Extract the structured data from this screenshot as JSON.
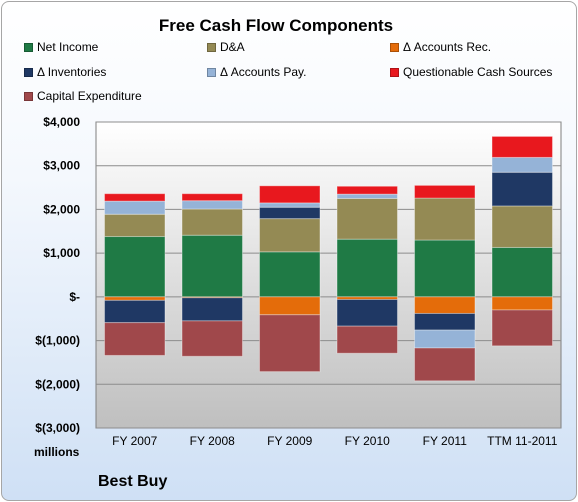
{
  "company": "Best Buy",
  "chart_data": {
    "type": "bar",
    "stacked": true,
    "title": "Free Cash Flow Components",
    "ylabel": "millions",
    "xlabel": "",
    "ylim": [
      -3000,
      4000
    ],
    "yticks": [
      {
        "value": 4000,
        "label": "$4,000"
      },
      {
        "value": 3000,
        "label": "$3,000"
      },
      {
        "value": 2000,
        "label": "$2,000"
      },
      {
        "value": 1000,
        "label": "$1,000"
      },
      {
        "value": 0,
        "label": "$-"
      },
      {
        "value": -1000,
        "label": "$(1,000)"
      },
      {
        "value": -2000,
        "label": "$(2,000)"
      },
      {
        "value": -3000,
        "label": "$(3,000)"
      }
    ],
    "grid": true,
    "legend_position": "top",
    "categories": [
      "FY 2007",
      "FY 2008",
      "FY 2009",
      "FY 2010",
      "FY 2011",
      "TTM 11-2011"
    ],
    "series": [
      {
        "name": "Net Income",
        "color": "#1f7a45",
        "values": [
          1380,
          1410,
          1030,
          1320,
          1300,
          1130
        ]
      },
      {
        "name": "D&A",
        "color": "#948a54",
        "values": [
          510,
          600,
          760,
          930,
          960,
          950
        ]
      },
      {
        "name": "Δ Accounts Rec.",
        "color": "#e46c0a",
        "values": [
          -80,
          -20,
          -410,
          -60,
          -380,
          -300
        ]
      },
      {
        "name": "Δ Inventories",
        "color": "#1f3864",
        "values": [
          -510,
          -530,
          260,
          -610,
          -380,
          770
        ]
      },
      {
        "name": "Δ Accounts Pay.",
        "color": "#95b3d7",
        "values": [
          300,
          190,
          100,
          100,
          -410,
          340
        ]
      },
      {
        "name": "Questionable Cash Sources",
        "color": "#e8181e",
        "values": [
          170,
          160,
          390,
          180,
          290,
          480
        ]
      },
      {
        "name": "Capital Expenditure",
        "color": "#a0484b",
        "values": [
          -750,
          -810,
          -1300,
          -620,
          -750,
          -820
        ]
      }
    ]
  }
}
